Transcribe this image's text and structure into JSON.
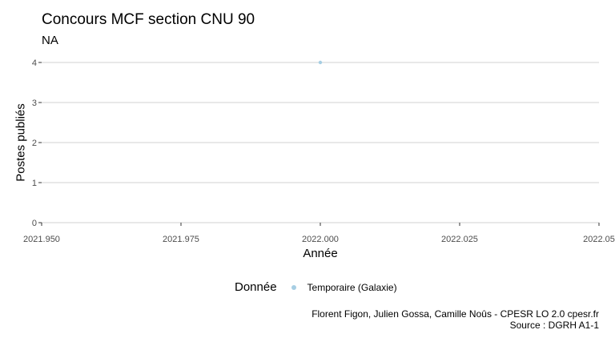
{
  "chart_data": {
    "type": "scatter",
    "title": "Concours MCF section CNU 90",
    "subtitle": "NA",
    "xlabel": "Année",
    "ylabel": "Postes publiés",
    "xlim": [
      2021.95,
      2022.05
    ],
    "ylim": [
      0,
      4
    ],
    "x_ticks": [
      "2021.950",
      "2021.975",
      "2022.000",
      "2022.025",
      "2022.05"
    ],
    "y_ticks": [
      "0",
      "1",
      "2",
      "3",
      "4"
    ],
    "grid": true,
    "legend_position": "bottom",
    "legend_title": "Donnée",
    "series": [
      {
        "name": "Temporaire (Galaxie)",
        "color": "#a6cee3",
        "x": [
          2022.0
        ],
        "y": [
          4
        ]
      }
    ],
    "caption": [
      "Florent Figon, Julien Gossa, Camille Noûs - CPESR LO 2.0 cpesr.fr",
      "Source : DGRH A1-1"
    ]
  }
}
